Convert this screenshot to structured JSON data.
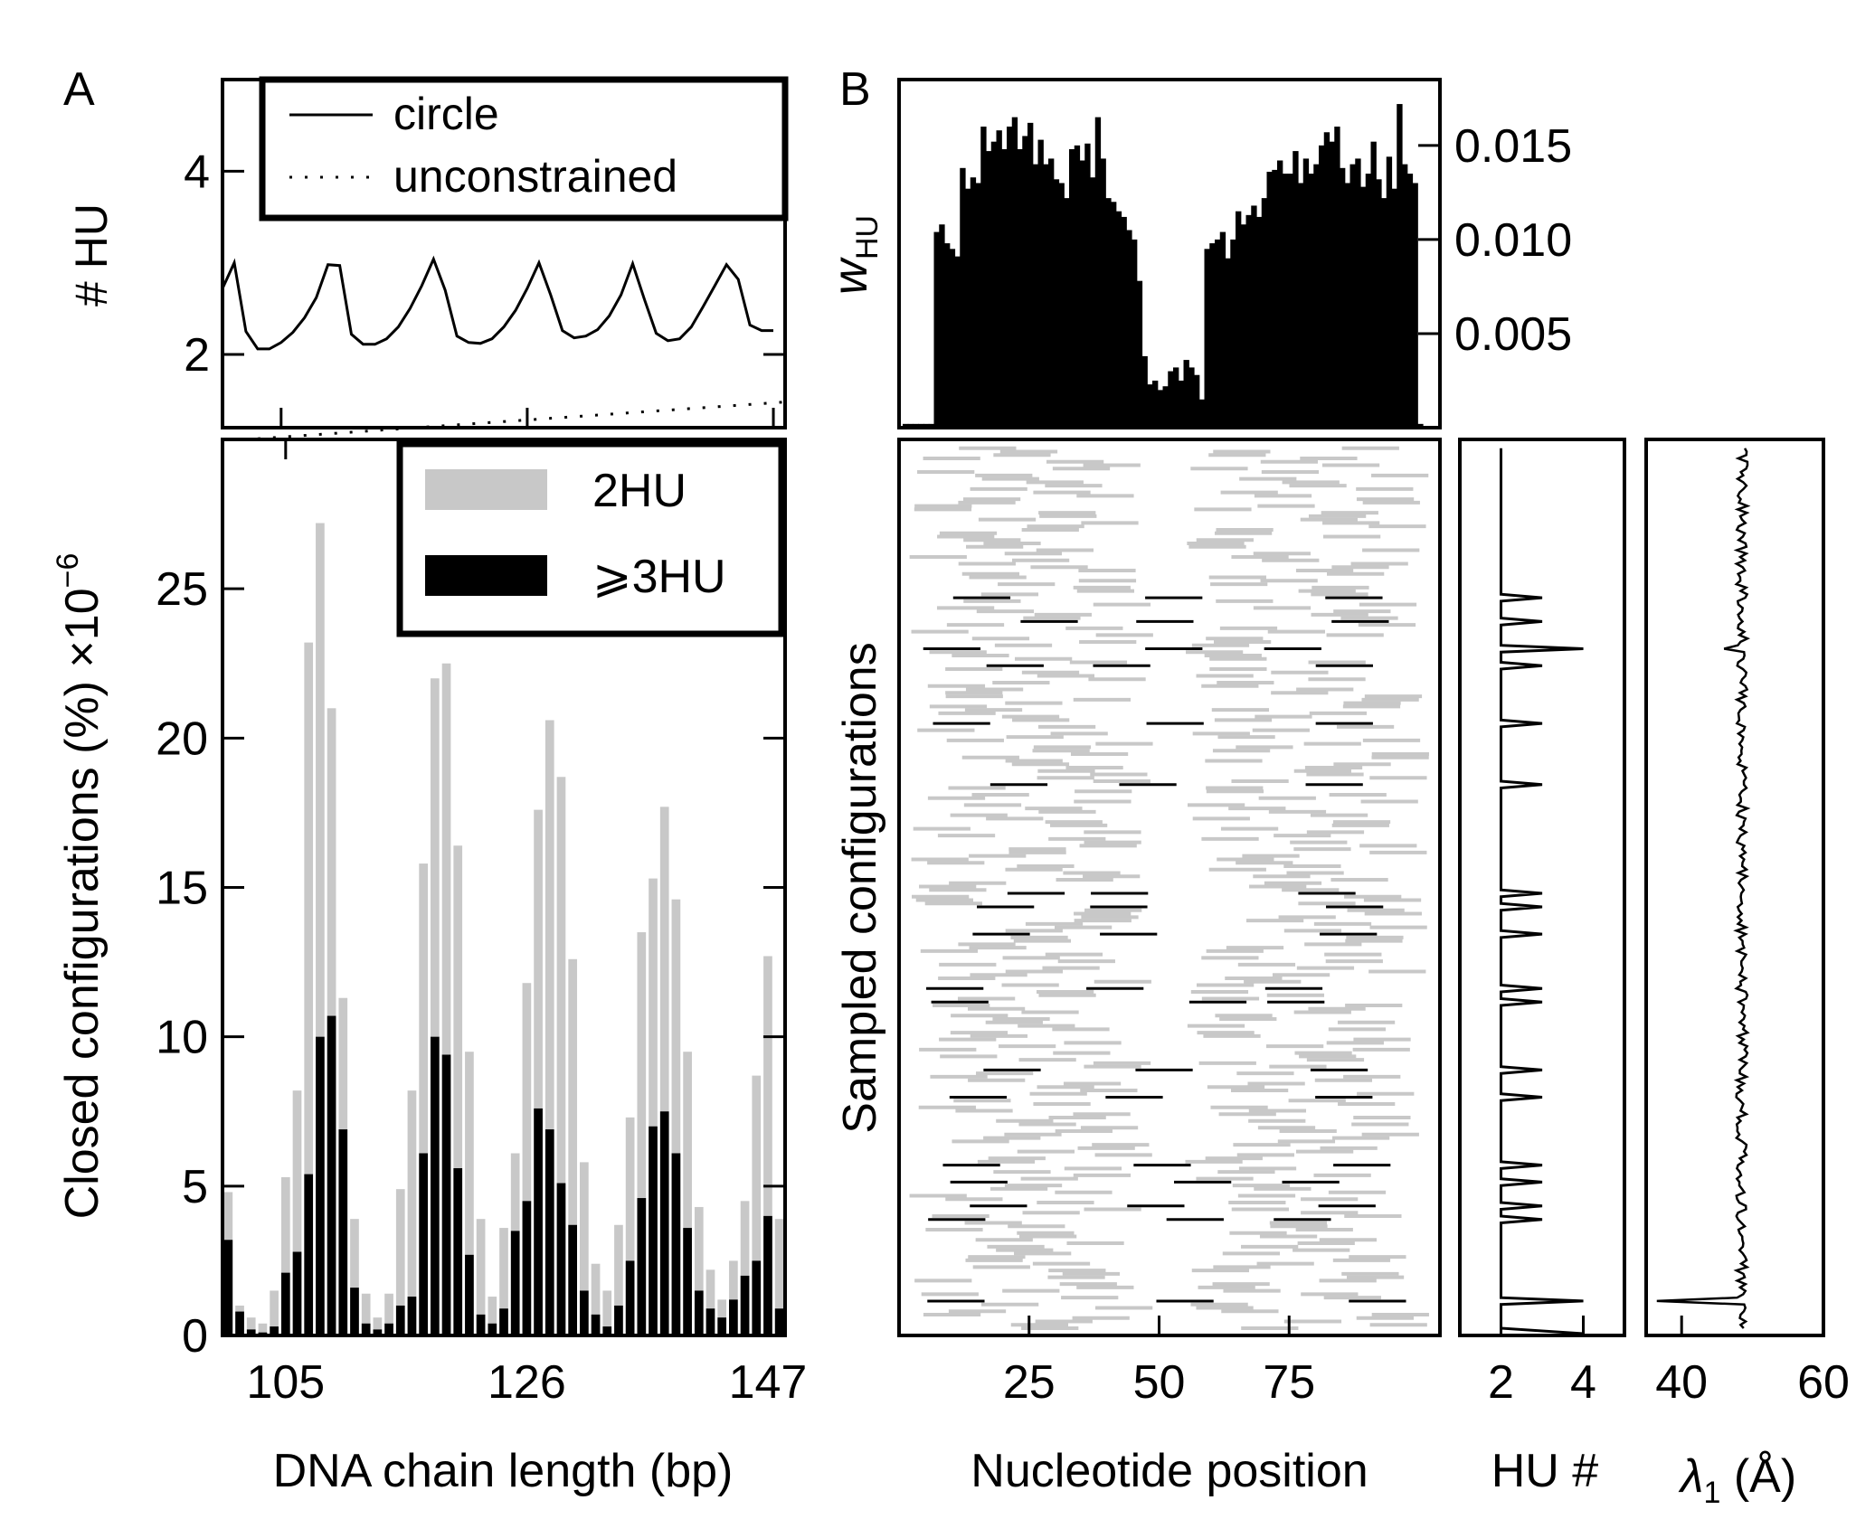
{
  "panels": {
    "a_label": "A",
    "b_label": "B"
  },
  "colors": {
    "ink": "#000000",
    "two_hu": "#c8c8c8",
    "three_hu": "#000000"
  },
  "chart_data": [
    {
      "id": "A-top",
      "type": "line",
      "ylabel": "# HU",
      "ylim": [
        1.2,
        5.0
      ],
      "yticks": [
        2,
        4
      ],
      "xlim": [
        100,
        148
      ],
      "legend": {
        "position": "top-right",
        "entries": [
          "circle",
          "unconstrained"
        ]
      },
      "series": [
        {
          "name": "circle",
          "style": "solid",
          "x": [
            100,
            101,
            102,
            103,
            104,
            105,
            106,
            107,
            108,
            109,
            110,
            111,
            112,
            113,
            114,
            115,
            116,
            117,
            118,
            119,
            120,
            121,
            122,
            123,
            124,
            125,
            126,
            127,
            128,
            129,
            130,
            131,
            132,
            133,
            134,
            135,
            136,
            137,
            138,
            139,
            140,
            141,
            142,
            143,
            144,
            145,
            146,
            147
          ],
          "y": [
            2.72,
            3.0,
            2.25,
            2.06,
            2.06,
            2.13,
            2.24,
            2.4,
            2.62,
            2.98,
            2.97,
            2.22,
            2.11,
            2.11,
            2.17,
            2.3,
            2.5,
            2.75,
            3.04,
            2.7,
            2.2,
            2.13,
            2.12,
            2.17,
            2.3,
            2.48,
            2.72,
            3.0,
            2.65,
            2.26,
            2.18,
            2.2,
            2.27,
            2.42,
            2.65,
            2.99,
            2.6,
            2.23,
            2.15,
            2.17,
            2.3,
            2.52,
            2.75,
            2.98,
            2.82,
            2.32,
            2.26,
            2.26
          ]
        },
        {
          "name": "unconstrained",
          "style": "dotted",
          "x": [
            103,
            148
          ],
          "y": [
            1.08,
            1.48
          ]
        }
      ]
    },
    {
      "id": "A-bottom",
      "type": "bar",
      "xlabel": "DNA chain length (bp)",
      "ylabel": "Closed configurations (%) ×10",
      "ylabel_exponent": "−6",
      "xlim": [
        100,
        148
      ],
      "ylim": [
        0,
        30
      ],
      "xticks": [
        105,
        126,
        147
      ],
      "yticks": [
        0,
        5,
        10,
        15,
        20,
        25
      ],
      "legend": {
        "position": "top-right",
        "entries": [
          "2HU",
          "⩾3HU"
        ]
      },
      "x": [
        100,
        101,
        102,
        103,
        104,
        105,
        106,
        107,
        108,
        109,
        110,
        111,
        112,
        113,
        114,
        115,
        116,
        117,
        118,
        119,
        120,
        121,
        122,
        123,
        124,
        125,
        126,
        127,
        128,
        129,
        130,
        131,
        132,
        133,
        134,
        135,
        136,
        137,
        138,
        139,
        140,
        141,
        142,
        143,
        144,
        145,
        146,
        147,
        148
      ],
      "series": [
        {
          "name": "2HU",
          "values": [
            4.8,
            1.0,
            0.6,
            0.4,
            1.5,
            5.3,
            8.2,
            23.2,
            27.2,
            21.0,
            11.3,
            3.9,
            1.4,
            0.6,
            1.4,
            4.9,
            8.2,
            15.8,
            22.0,
            22.5,
            16.4,
            9.5,
            3.9,
            1.3,
            3.6,
            6.1,
            11.8,
            17.6,
            20.6,
            18.7,
            12.6,
            5.8,
            2.4,
            1.5,
            3.7,
            7.3,
            13.5,
            15.3,
            17.7,
            14.6,
            9.5,
            4.3,
            2.2,
            1.2,
            2.5,
            4.5,
            8.7,
            12.7,
            3.9
          ]
        },
        {
          "name": "⩾3HU",
          "values": [
            3.2,
            0.8,
            0.2,
            0.1,
            0.3,
            2.1,
            2.8,
            5.4,
            10.0,
            10.7,
            6.9,
            1.6,
            0.4,
            0.2,
            0.4,
            1.0,
            1.3,
            6.1,
            10.0,
            9.4,
            5.6,
            2.7,
            0.7,
            0.4,
            0.9,
            3.5,
            4.5,
            7.6,
            6.9,
            5.1,
            3.7,
            1.5,
            0.7,
            0.3,
            1.0,
            2.5,
            4.6,
            7.0,
            7.5,
            6.1,
            3.6,
            1.5,
            0.9,
            0.6,
            1.2,
            2.0,
            2.5,
            4.0,
            0.9
          ]
        }
      ]
    },
    {
      "id": "B-top",
      "type": "bar",
      "ylabel": "w",
      "ylabel_subscript": "HU",
      "ylim": [
        0,
        0.0185
      ],
      "yticks_labels": [
        "0.015",
        "0.010",
        "0.005"
      ],
      "yticks": [
        0.015,
        0.01,
        0.005
      ],
      "xlim": [
        0,
        100
      ],
      "x": [
        1,
        2,
        3,
        4,
        5,
        6,
        7,
        8,
        9,
        10,
        11,
        12,
        13,
        14,
        15,
        16,
        17,
        18,
        19,
        20,
        21,
        22,
        23,
        24,
        25,
        26,
        27,
        28,
        29,
        30,
        31,
        32,
        33,
        34,
        35,
        36,
        37,
        38,
        39,
        40,
        41,
        42,
        43,
        44,
        45,
        46,
        47,
        48,
        49,
        50,
        51,
        52,
        53,
        54,
        55,
        56,
        57,
        58,
        59,
        60,
        61,
        62,
        63,
        64,
        65,
        66,
        67,
        68,
        69,
        70,
        71,
        72,
        73,
        74,
        75,
        76,
        77,
        78,
        79,
        80,
        81,
        82,
        83,
        84,
        85,
        86,
        87,
        88,
        89,
        90,
        91,
        92,
        93,
        94,
        95,
        96,
        97,
        98,
        99,
        100
      ],
      "values": [
        0.0002,
        0.0002,
        0.0002,
        0.0002,
        0.0002,
        0.0002,
        0.0104,
        0.0108,
        0.0098,
        0.0095,
        0.0091,
        0.0138,
        0.0127,
        0.0133,
        0.013,
        0.016,
        0.0147,
        0.0152,
        0.0158,
        0.0148,
        0.016,
        0.0165,
        0.0148,
        0.0155,
        0.0162,
        0.014,
        0.0153,
        0.014,
        0.0143,
        0.0132,
        0.013,
        0.0122,
        0.0148,
        0.015,
        0.0142,
        0.0151,
        0.0133,
        0.0165,
        0.0143,
        0.0122,
        0.012,
        0.0115,
        0.0112,
        0.0105,
        0.01,
        0.0078,
        0.0038,
        0.0023,
        0.0025,
        0.002,
        0.0022,
        0.003,
        0.0032,
        0.0025,
        0.0036,
        0.0032,
        0.0028,
        0.0015,
        0.0095,
        0.0098,
        0.01,
        0.0104,
        0.009,
        0.01,
        0.0115,
        0.0108,
        0.0113,
        0.0118,
        0.0112,
        0.0122,
        0.0136,
        0.0137,
        0.0142,
        0.0135,
        0.0135,
        0.0147,
        0.013,
        0.0143,
        0.0135,
        0.014,
        0.015,
        0.0157,
        0.0152,
        0.016,
        0.0138,
        0.013,
        0.014,
        0.0143,
        0.0128,
        0.0135,
        0.0152,
        0.0132,
        0.0122,
        0.0144,
        0.0127,
        0.0172,
        0.014,
        0.0135,
        0.013,
        0.0002
      ]
    },
    {
      "id": "B-main",
      "type": "heatmap",
      "xlabel": "Nucleotide position",
      "ylabel": "Sampled configurations",
      "xlim": [
        0,
        104
      ],
      "xticks": [
        25,
        50,
        75
      ],
      "rows": 260,
      "segment_length": 11,
      "highlight_rows": [
        215,
        208,
        200,
        195,
        178,
        160,
        128,
        124,
        116,
        100,
        96,
        76,
        68,
        48,
        43,
        36,
        32,
        8
      ],
      "colors": {
        "two_hu_bound": "#c8c8c8",
        "three_hu_bound": "#000000"
      }
    },
    {
      "id": "B-HU",
      "type": "line",
      "xlabel": "HU #",
      "xlim": [
        1,
        5
      ],
      "xticks": [
        2,
        4
      ],
      "spikes": [
        {
          "row": 8,
          "value": 4
        },
        {
          "row": 32,
          "value": 3
        },
        {
          "row": 36,
          "value": 3
        },
        {
          "row": 43,
          "value": 3
        },
        {
          "row": 48,
          "value": 3
        },
        {
          "row": 68,
          "value": 3
        },
        {
          "row": 76,
          "value": 3
        },
        {
          "row": 96,
          "value": 3
        },
        {
          "row": 100,
          "value": 3
        },
        {
          "row": 116,
          "value": 3
        },
        {
          "row": 124,
          "value": 3
        },
        {
          "row": 128,
          "value": 3
        },
        {
          "row": 160,
          "value": 3
        },
        {
          "row": 178,
          "value": 3
        },
        {
          "row": 195,
          "value": 3
        },
        {
          "row": 200,
          "value": 4
        },
        {
          "row": 208,
          "value": 3
        },
        {
          "row": 215,
          "value": 3
        }
      ]
    },
    {
      "id": "B-lambda",
      "type": "line",
      "xlabel": "λ",
      "xlabel_subscript": "1",
      "xlabel_unit": " (Å)",
      "xlim": [
        35,
        60
      ],
      "xticks": [
        40,
        60
      ],
      "baseline": 48.5,
      "amplitude": 0.8,
      "spikes": [
        {
          "row": 8,
          "value": 36.5
        },
        {
          "row": 200,
          "value": 46.0
        }
      ]
    }
  ]
}
